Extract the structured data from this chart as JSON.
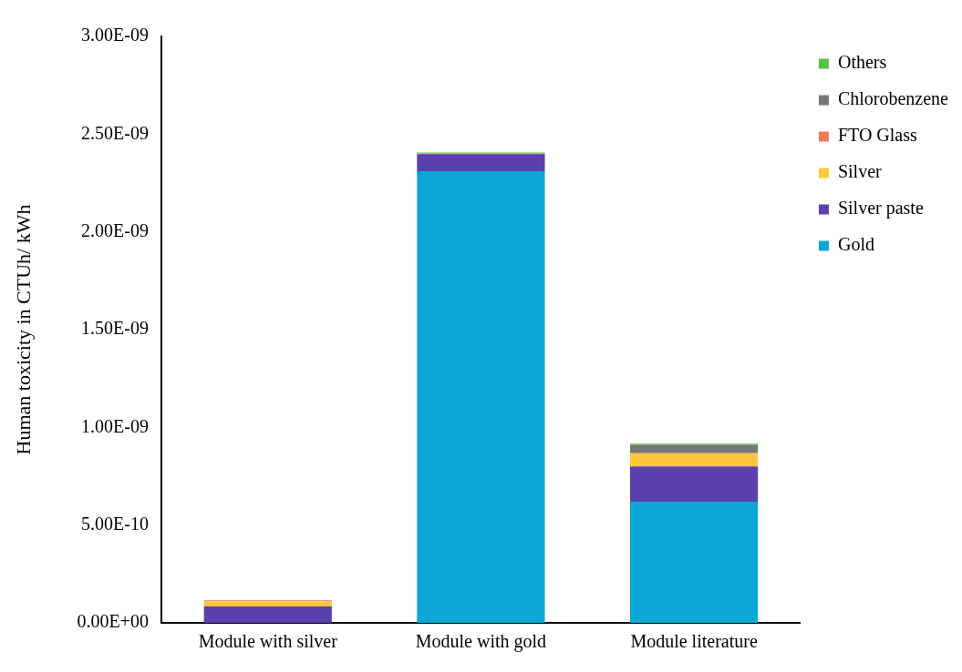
{
  "chart_data": {
    "type": "bar",
    "stacked": true,
    "ylabel": "Human toxicity in CTUh/ kWh",
    "categories": [
      "Module with silver",
      "Module with gold",
      "Module literature"
    ],
    "series": [
      {
        "name": "Gold",
        "color": "#0aa6d6",
        "values": [
          0,
          2.31e-09,
          6.2e-10
        ]
      },
      {
        "name": "Silver paste",
        "color": "#5a3fae",
        "values": [
          8.4e-11,
          8.8e-11,
          1.8e-10
        ]
      },
      {
        "name": "Silver",
        "color": "#ffc83a",
        "values": [
          2.6e-11,
          0,
          6.8e-11
        ]
      },
      {
        "name": "FTO Glass",
        "color": "#f07c5a",
        "values": [
          5e-12,
          4e-12,
          0
        ]
      },
      {
        "name": "Chlorobenzene",
        "color": "#777777",
        "values": [
          0,
          0,
          4.3e-11
        ]
      },
      {
        "name": "Others",
        "color": "#5cbf4a",
        "values": [
          0,
          4e-12,
          5e-12
        ]
      }
    ],
    "ylim": [
      0,
      3e-09
    ],
    "yticks": [
      {
        "value": 0,
        "label": "0.00E+00"
      },
      {
        "value": 5e-10,
        "label": "5.00E-10"
      },
      {
        "value": 1e-09,
        "label": "1.00E-09"
      },
      {
        "value": 1.5e-09,
        "label": "1.50E-09"
      },
      {
        "value": 2e-09,
        "label": "2.00E-09"
      },
      {
        "value": 2.5e-09,
        "label": "2.50E-09"
      },
      {
        "value": 3e-09,
        "label": "3.00E-09"
      }
    ],
    "grid": false,
    "legend": "top right"
  }
}
